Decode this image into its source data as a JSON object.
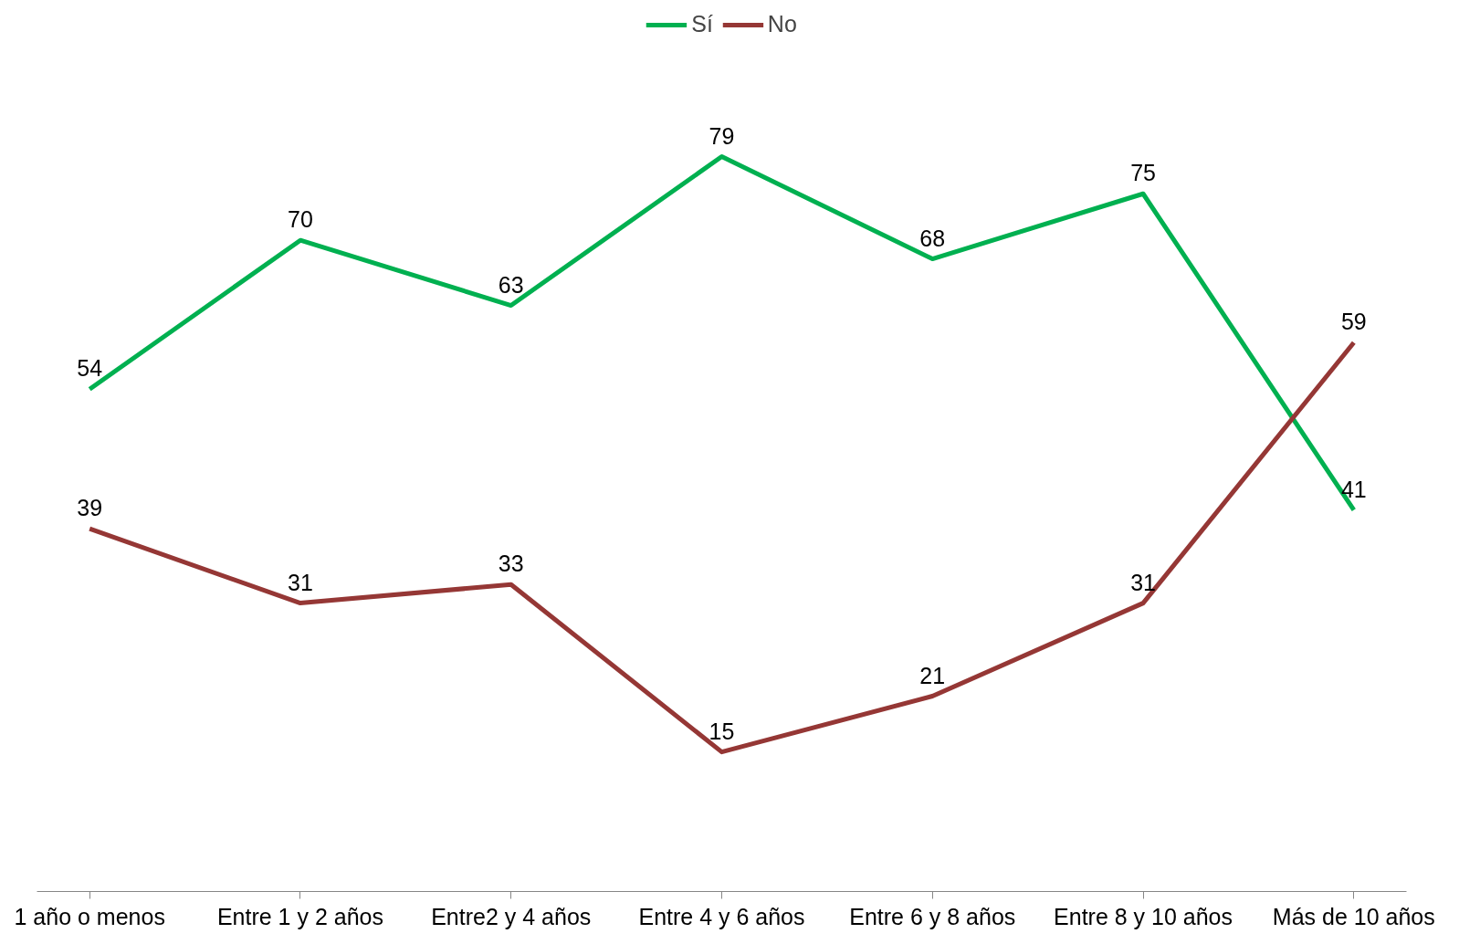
{
  "chart_data": {
    "type": "line",
    "categories": [
      "1 año o menos",
      "Entre 1 y 2 años",
      "Entre2 y 4 años",
      "Entre 4 y 6 años",
      "Entre 6 y 8 años",
      "Entre 8 y 10 años",
      "Más de 10 años"
    ],
    "series": [
      {
        "name": "Sí",
        "color": "#00b050",
        "values": [
          54,
          70,
          63,
          79,
          68,
          75,
          41
        ]
      },
      {
        "name": "No",
        "color": "#953735",
        "values": [
          39,
          31,
          33,
          15,
          21,
          31,
          59
        ]
      }
    ],
    "data_labels": true,
    "legend": "top",
    "grid": false,
    "marker": "none",
    "line_style": "solid"
  }
}
